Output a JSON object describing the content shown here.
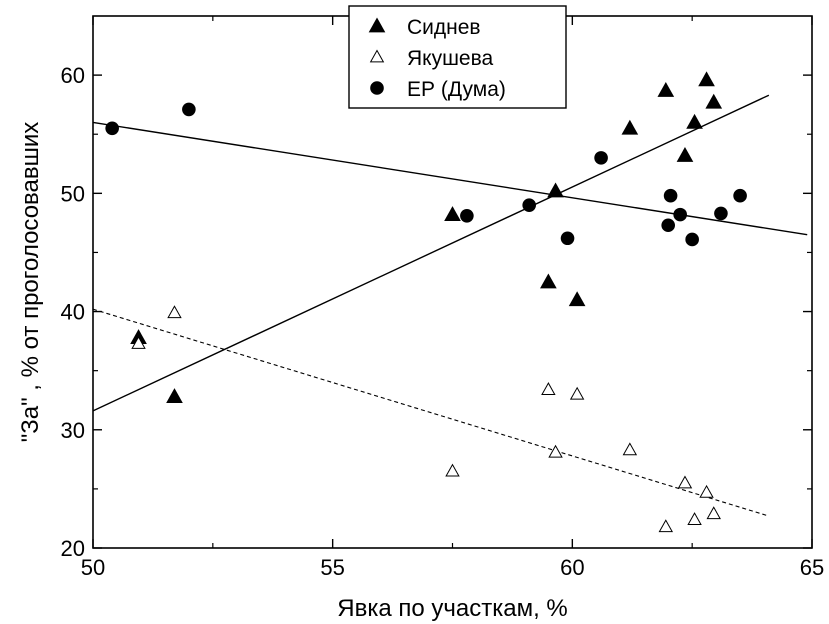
{
  "chart_data": {
    "type": "scatter",
    "xlabel": "Явка по участкам, %",
    "ylabel": "\"За\" , % от проголосовавших",
    "xlim": [
      50,
      65
    ],
    "ylim": [
      20,
      65
    ],
    "x_ticks": [
      50,
      55,
      60,
      65
    ],
    "y_ticks": [
      20,
      30,
      40,
      50,
      60
    ],
    "legend_position": "top-center",
    "series": [
      {
        "name": "Сиднев",
        "marker": "filled-triangle",
        "points": [
          [
            50.95,
            37.8
          ],
          [
            51.7,
            32.8
          ],
          [
            57.5,
            48.2
          ],
          [
            59.5,
            42.5
          ],
          [
            59.65,
            50.2
          ],
          [
            60.1,
            41.0
          ],
          [
            61.2,
            55.5
          ],
          [
            61.95,
            58.7
          ],
          [
            62.35,
            53.2
          ],
          [
            62.55,
            56.0
          ],
          [
            62.8,
            59.6
          ],
          [
            62.95,
            57.7
          ]
        ]
      },
      {
        "name": "Якушева",
        "marker": "open-triangle",
        "points": [
          [
            50.95,
            37.3
          ],
          [
            51.7,
            39.9
          ],
          [
            57.5,
            26.5
          ],
          [
            59.5,
            33.4
          ],
          [
            59.65,
            28.1
          ],
          [
            60.1,
            33.0
          ],
          [
            61.2,
            28.3
          ],
          [
            61.95,
            21.8
          ],
          [
            62.35,
            25.5
          ],
          [
            62.55,
            22.4
          ],
          [
            62.8,
            24.7
          ],
          [
            62.95,
            22.9
          ]
        ]
      },
      {
        "name": "ЕР (Дума)",
        "marker": "filled-circle",
        "points": [
          [
            50.4,
            55.5
          ],
          [
            52.0,
            57.1
          ],
          [
            57.8,
            48.1
          ],
          [
            59.1,
            49.0
          ],
          [
            59.9,
            46.2
          ],
          [
            60.6,
            53.0
          ],
          [
            62.05,
            49.8
          ],
          [
            62.0,
            47.3
          ],
          [
            62.25,
            48.2
          ],
          [
            62.5,
            46.1
          ],
          [
            63.1,
            48.3
          ],
          [
            63.5,
            49.8
          ]
        ]
      }
    ],
    "fit_lines": [
      {
        "series": "Сиднев",
        "style": "solid",
        "from": [
          50.0,
          31.6
        ],
        "to": [
          64.1,
          58.3
        ]
      },
      {
        "series": "ЕР (Дума)",
        "style": "solid",
        "from": [
          50.0,
          56.0
        ],
        "to": [
          64.9,
          46.5
        ]
      },
      {
        "series": "Якушева",
        "style": "dashed",
        "from": [
          50.0,
          40.2
        ],
        "to": [
          64.1,
          22.7
        ]
      }
    ]
  }
}
